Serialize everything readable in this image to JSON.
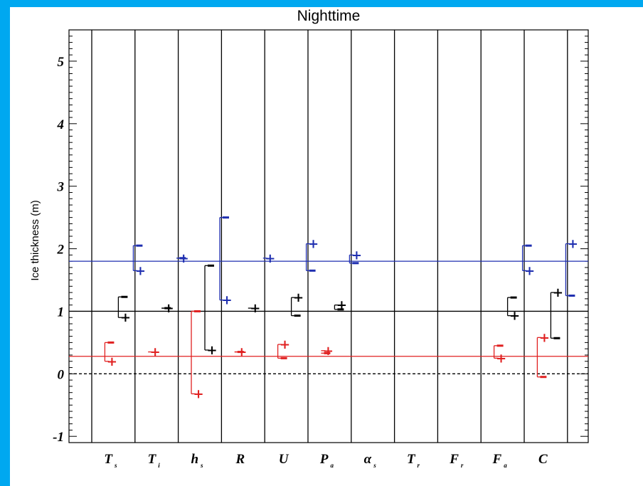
{
  "chart_data": {
    "type": "scatter",
    "title": "Nighttime",
    "ylabel": "Ice thickness (m)",
    "xlabel": "",
    "ylim": [
      -1.1,
      5.5
    ],
    "yticks": [
      -1,
      0,
      1,
      2,
      3,
      4,
      5
    ],
    "grid": false,
    "categories": [
      {
        "main": "T",
        "sub": "s"
      },
      {
        "main": "T",
        "sub": "i"
      },
      {
        "main": "h",
        "sub": "s"
      },
      {
        "main": "R",
        "sub": ""
      },
      {
        "main": "U",
        "sub": ""
      },
      {
        "main": "P",
        "sub": "a"
      },
      {
        "main": "α",
        "sub": "s"
      },
      {
        "main": "T",
        "sub": "r"
      },
      {
        "main": "F",
        "sub": "r"
      },
      {
        "main": "F",
        "sub": "a"
      },
      {
        "main": "C",
        "sub": ""
      }
    ],
    "reference_lines": [
      {
        "value": 1.8,
        "color": "#1f2fb0",
        "style": "solid"
      },
      {
        "value": 1.0,
        "color": "#000000",
        "style": "solid"
      },
      {
        "value": 0.28,
        "color": "#e02020",
        "style": "solid"
      },
      {
        "value": 0.0,
        "color": "#000000",
        "style": "dashed"
      }
    ],
    "series": [
      {
        "color": "#e02020",
        "perturbations": [
          {
            "category": 0,
            "plus": 0.2,
            "minus": 0.5
          },
          {
            "category": 1,
            "plus": 0.35,
            "minus": null
          },
          {
            "category": 2,
            "plus": -0.32,
            "minus": 1.0
          },
          {
            "category": 3,
            "plus": 0.35,
            "minus": 0.35
          },
          {
            "category": 4,
            "plus": 0.47,
            "minus": 0.25
          },
          {
            "category": 5,
            "plus": 0.37,
            "minus": 0.33
          },
          {
            "category": 9,
            "plus": 0.25,
            "minus": 0.45
          },
          {
            "category": 10,
            "plus": 0.58,
            "minus": -0.05
          }
        ]
      },
      {
        "color": "#000000",
        "perturbations": [
          {
            "category": 0,
            "plus": 0.9,
            "minus": 1.23
          },
          {
            "category": 1,
            "plus": 1.05,
            "minus": 1.05
          },
          {
            "category": 2,
            "plus": 0.38,
            "minus": 1.73
          },
          {
            "category": 3,
            "plus": 1.05,
            "minus": null
          },
          {
            "category": 4,
            "plus": 1.22,
            "minus": 0.93
          },
          {
            "category": 5,
            "plus": 1.1,
            "minus": 1.03
          },
          {
            "category": 9,
            "plus": 0.93,
            "minus": 1.22
          },
          {
            "category": 10,
            "plus": 1.3,
            "minus": 0.57
          }
        ]
      },
      {
        "color": "#1f2fb0",
        "perturbations": [
          {
            "category": 0,
            "plus": 1.65,
            "minus": 2.05
          },
          {
            "category": 1,
            "plus": 1.85,
            "minus": 1.85
          },
          {
            "category": 2,
            "plus": 1.18,
            "minus": 2.5
          },
          {
            "category": 3,
            "plus": 1.85,
            "minus": null
          },
          {
            "category": 4,
            "plus": 2.08,
            "minus": 1.65
          },
          {
            "category": 5,
            "plus": 1.9,
            "minus": 1.77
          },
          {
            "category": 9,
            "plus": 1.65,
            "minus": 2.05
          },
          {
            "category": 10,
            "plus": 2.08,
            "minus": 1.25
          }
        ]
      }
    ]
  }
}
